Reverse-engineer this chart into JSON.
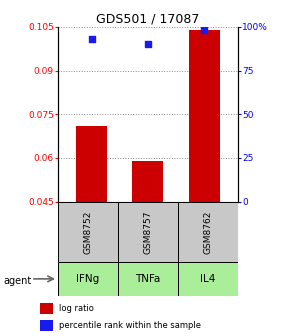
{
  "title": "GDS501 / 17087",
  "categories": [
    "IFNg",
    "TNFa",
    "IL4"
  ],
  "sample_ids": [
    "GSM8752",
    "GSM8757",
    "GSM8762"
  ],
  "bar_values": [
    0.071,
    0.059,
    0.104
  ],
  "bar_bottom": 0.045,
  "percentile_values": [
    93,
    90,
    98
  ],
  "ylim_left": [
    0.045,
    0.105
  ],
  "ylim_right": [
    0,
    100
  ],
  "yticks_left": [
    0.045,
    0.06,
    0.075,
    0.09,
    0.105
  ],
  "yticks_right": [
    0,
    25,
    50,
    75,
    100
  ],
  "ytick_labels_left": [
    "0.045",
    "0.06",
    "0.075",
    "0.09",
    "0.105"
  ],
  "ytick_labels_right": [
    "0",
    "25",
    "50",
    "75",
    "100%"
  ],
  "bar_color": "#cc0000",
  "dot_color": "#1a1aee",
  "cell_bg_sample": "#c8c8c8",
  "cell_bg_agent": "#aaee99",
  "legend_bar_label": "log ratio",
  "legend_dot_label": "percentile rank within the sample",
  "grid_color": "#888888",
  "bar_width": 0.55
}
